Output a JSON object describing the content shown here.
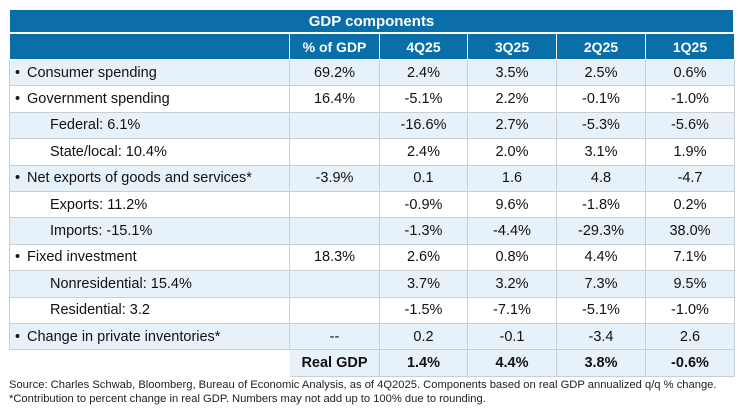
{
  "chart_data": {
    "type": "table",
    "title": "GDP components",
    "columns": [
      "",
      "% of GDP",
      "4Q25",
      "3Q25",
      "2Q25",
      "1Q25"
    ],
    "rows": [
      {
        "label": "Consumer spending",
        "bullet": true,
        "indent": false,
        "share": "69.2%",
        "values": [
          "2.4%",
          "3.5%",
          "2.5%",
          "0.6%"
        ]
      },
      {
        "label": "Government spending",
        "bullet": true,
        "indent": false,
        "share": "16.4%",
        "values": [
          "-5.1%",
          "2.2%",
          "-0.1%",
          "-1.0%"
        ]
      },
      {
        "label": "Federal: 6.1%",
        "bullet": false,
        "indent": true,
        "share": "",
        "values": [
          "-16.6%",
          "2.7%",
          "-5.3%",
          "-5.6%"
        ]
      },
      {
        "label": "State/local: 10.4%",
        "bullet": false,
        "indent": true,
        "share": "",
        "values": [
          "2.4%",
          "2.0%",
          "3.1%",
          "1.9%"
        ]
      },
      {
        "label": "Net exports of goods and services*",
        "bullet": true,
        "indent": false,
        "share": "-3.9%",
        "values": [
          "0.1",
          "1.6",
          "4.8",
          "-4.7"
        ]
      },
      {
        "label": "Exports: 11.2%",
        "bullet": false,
        "indent": true,
        "share": "",
        "values": [
          "-0.9%",
          "9.6%",
          "-1.8%",
          "0.2%"
        ]
      },
      {
        "label": "Imports: -15.1%",
        "bullet": false,
        "indent": true,
        "share": "",
        "values": [
          "-1.3%",
          "-4.4%",
          "-29.3%",
          "38.0%"
        ]
      },
      {
        "label": "Fixed investment",
        "bullet": true,
        "indent": false,
        "share": "18.3%",
        "values": [
          "2.6%",
          "0.8%",
          "4.4%",
          "7.1%"
        ]
      },
      {
        "label": "Nonresidential: 15.4%",
        "bullet": false,
        "indent": true,
        "share": "",
        "values": [
          "3.7%",
          "3.2%",
          "7.3%",
          "9.5%"
        ]
      },
      {
        "label": "Residential: 3.2",
        "bullet": false,
        "indent": true,
        "share": "",
        "values": [
          "-1.5%",
          "-7.1%",
          "-5.1%",
          "-1.0%"
        ]
      },
      {
        "label": "Change in private inventories*",
        "bullet": true,
        "indent": false,
        "share": "--",
        "values": [
          "0.2",
          "-0.1",
          "-3.4",
          "2.6"
        ]
      }
    ],
    "total": {
      "label": "Real GDP",
      "values": [
        "1.4%",
        "4.4%",
        "3.8%",
        "-0.6%"
      ]
    }
  },
  "bullet_char": "•",
  "source": "Source: Charles Schwab, Bloomberg, Bureau of Economic Analysis, as of 4Q2025. Components based on real GDP annualized q/q % change. *Contribution to percent change in real GDP. Numbers may not add up to 100% due to rounding.",
  "colors": {
    "header": "#0a6fa8",
    "band": "#e7f1fa",
    "border": "#c9cfd4"
  }
}
